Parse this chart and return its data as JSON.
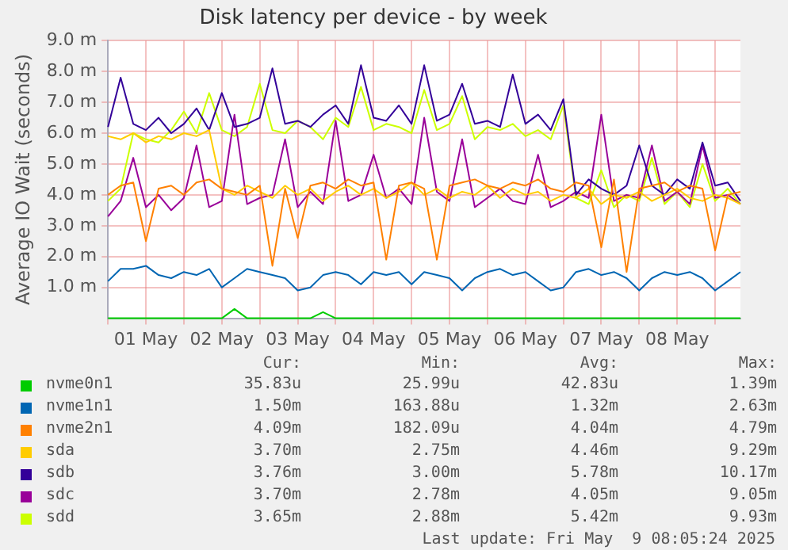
{
  "chart_data": {
    "type": "line",
    "title": "Disk latency per device - by week",
    "ylabel": "Average IO Wait (seconds)",
    "x": [
      "2025-05-01T00:00",
      "2025-05-01T04:00",
      "2025-05-01T08:00",
      "2025-05-01T12:00",
      "2025-05-01T16:00",
      "2025-05-01T20:00",
      "2025-05-02T00:00",
      "2025-05-02T04:00",
      "2025-05-02T08:00",
      "2025-05-02T12:00",
      "2025-05-02T16:00",
      "2025-05-02T20:00",
      "2025-05-03T00:00",
      "2025-05-03T04:00",
      "2025-05-03T08:00",
      "2025-05-03T12:00",
      "2025-05-03T16:00",
      "2025-05-03T20:00",
      "2025-05-04T00:00",
      "2025-05-04T04:00",
      "2025-05-04T08:00",
      "2025-05-04T12:00",
      "2025-05-04T16:00",
      "2025-05-04T20:00",
      "2025-05-05T00:00",
      "2025-05-05T04:00",
      "2025-05-05T08:00",
      "2025-05-05T12:00",
      "2025-05-05T16:00",
      "2025-05-05T20:00",
      "2025-05-06T00:00",
      "2025-05-06T04:00",
      "2025-05-06T08:00",
      "2025-05-06T12:00",
      "2025-05-06T16:00",
      "2025-05-06T20:00",
      "2025-05-07T00:00",
      "2025-05-07T04:00",
      "2025-05-07T08:00",
      "2025-05-07T12:00",
      "2025-05-07T16:00",
      "2025-05-07T20:00",
      "2025-05-08T00:00",
      "2025-05-08T04:00",
      "2025-05-08T08:00",
      "2025-05-08T12:00",
      "2025-05-08T16:00",
      "2025-05-08T20:00",
      "2025-05-09T00:00",
      "2025-05-09T04:00",
      "2025-05-09T08:00"
    ],
    "series": [
      {
        "name": "nvme0n1",
        "color": "#00cc00",
        "values": [
          0,
          0,
          0,
          0,
          0,
          0,
          0,
          0,
          0,
          0,
          0.3,
          0,
          0,
          0,
          0,
          0,
          0,
          0.2,
          0,
          0,
          0,
          0,
          0,
          0,
          0,
          0,
          0,
          0,
          0,
          0,
          0,
          0,
          0,
          0,
          0,
          0,
          0,
          0,
          0,
          0,
          0,
          0,
          0,
          0,
          0,
          0,
          0,
          0,
          0,
          0,
          0
        ]
      },
      {
        "name": "nvme1n1",
        "color": "#0066b3",
        "values": [
          1.2,
          1.6,
          1.6,
          1.7,
          1.4,
          1.3,
          1.5,
          1.4,
          1.6,
          1.0,
          1.3,
          1.6,
          1.5,
          1.4,
          1.3,
          0.9,
          1.0,
          1.4,
          1.5,
          1.4,
          1.1,
          1.5,
          1.4,
          1.5,
          1.1,
          1.5,
          1.4,
          1.3,
          0.9,
          1.3,
          1.5,
          1.6,
          1.4,
          1.5,
          1.2,
          0.9,
          1.0,
          1.5,
          1.6,
          1.4,
          1.5,
          1.3,
          0.9,
          1.3,
          1.5,
          1.4,
          1.5,
          1.3,
          0.9,
          1.2,
          1.5
        ]
      },
      {
        "name": "nvme2n1",
        "color": "#ff8000",
        "values": [
          4.0,
          4.3,
          4.4,
          2.5,
          4.2,
          4.3,
          4.0,
          4.4,
          4.5,
          4.2,
          4.1,
          4.0,
          4.3,
          1.7,
          4.2,
          2.6,
          4.3,
          4.4,
          4.2,
          4.5,
          4.3,
          4.4,
          1.9,
          4.3,
          4.4,
          4.2,
          1.9,
          4.3,
          4.4,
          4.5,
          4.3,
          4.2,
          4.4,
          4.3,
          4.5,
          4.2,
          4.1,
          4.4,
          4.3,
          2.3,
          4.5,
          1.5,
          4.2,
          4.3,
          4.4,
          4.1,
          4.3,
          4.2,
          2.2,
          4.0,
          4.1
        ]
      },
      {
        "name": "sda",
        "color": "#ffcc00",
        "values": [
          5.9,
          5.8,
          6.0,
          5.7,
          5.9,
          5.8,
          6.0,
          5.9,
          6.1,
          4.2,
          4.0,
          4.3,
          4.1,
          3.9,
          4.3,
          4.0,
          4.2,
          3.8,
          4.1,
          4.3,
          4.0,
          4.2,
          3.9,
          4.1,
          4.4,
          4.0,
          4.2,
          3.9,
          4.1,
          4.0,
          4.3,
          3.9,
          4.2,
          4.0,
          4.1,
          3.8,
          4.0,
          3.9,
          4.2,
          3.7,
          4.0,
          3.9,
          4.1,
          3.8,
          4.0,
          4.2,
          3.9,
          3.8,
          4.0,
          3.9,
          3.7
        ]
      },
      {
        "name": "sdb",
        "color": "#330099",
        "values": [
          6.2,
          7.8,
          6.3,
          6.1,
          6.5,
          6.0,
          6.3,
          6.8,
          6.1,
          7.3,
          6.2,
          6.3,
          6.5,
          8.1,
          6.3,
          6.4,
          6.2,
          6.6,
          6.9,
          6.3,
          8.2,
          6.5,
          6.4,
          6.9,
          6.3,
          8.2,
          6.4,
          6.6,
          7.6,
          6.3,
          6.4,
          6.2,
          7.9,
          6.3,
          6.6,
          6.1,
          7.1,
          4.0,
          4.5,
          4.2,
          4.0,
          4.3,
          5.6,
          4.3,
          4.0,
          4.5,
          4.2,
          5.7,
          4.3,
          4.4,
          3.8
        ]
      },
      {
        "name": "sdc",
        "color": "#990099",
        "values": [
          3.3,
          3.8,
          5.2,
          3.6,
          4.0,
          3.5,
          3.9,
          5.6,
          3.6,
          3.8,
          6.6,
          3.7,
          3.9,
          4.0,
          5.8,
          3.6,
          4.1,
          3.7,
          6.4,
          3.8,
          4.0,
          5.3,
          3.9,
          4.2,
          3.7,
          6.5,
          4.1,
          3.8,
          5.8,
          3.6,
          3.9,
          4.2,
          3.8,
          3.7,
          5.3,
          3.6,
          3.8,
          4.1,
          3.9,
          6.6,
          3.8,
          4.0,
          3.9,
          5.6,
          3.8,
          4.1,
          3.7,
          5.6,
          3.9,
          4.0,
          3.7
        ]
      },
      {
        "name": "sdd",
        "color": "#ccff00",
        "values": [
          3.8,
          4.2,
          6.0,
          5.8,
          5.7,
          6.1,
          6.7,
          6.0,
          7.3,
          6.1,
          5.9,
          6.2,
          7.6,
          6.1,
          6.0,
          6.4,
          6.2,
          5.8,
          6.5,
          6.2,
          7.5,
          6.1,
          6.3,
          6.2,
          6.0,
          7.4,
          6.1,
          6.3,
          7.2,
          5.8,
          6.2,
          6.1,
          6.3,
          5.9,
          6.1,
          5.8,
          6.9,
          3.9,
          3.7,
          4.8,
          3.6,
          4.0,
          3.8,
          5.2,
          3.7,
          4.1,
          3.6,
          5.0,
          3.8,
          4.2,
          3.7
        ]
      }
    ],
    "xlim": [
      "2025-05-01T00:00",
      "2025-05-09T08:00"
    ],
    "xticks": [
      {
        "value": "2025-05-01T00:00",
        "label": null
      },
      {
        "value": "2025-05-01T12:00",
        "label": "01 May"
      },
      {
        "value": "2025-05-02T00:00",
        "label": null
      },
      {
        "value": "2025-05-02T12:00",
        "label": "02 May"
      },
      {
        "value": "2025-05-03T00:00",
        "label": null
      },
      {
        "value": "2025-05-03T12:00",
        "label": "03 May"
      },
      {
        "value": "2025-05-04T00:00",
        "label": null
      },
      {
        "value": "2025-05-04T12:00",
        "label": "04 May"
      },
      {
        "value": "2025-05-05T00:00",
        "label": null
      },
      {
        "value": "2025-05-05T12:00",
        "label": "05 May"
      },
      {
        "value": "2025-05-06T00:00",
        "label": null
      },
      {
        "value": "2025-05-06T12:00",
        "label": "06 May"
      },
      {
        "value": "2025-05-07T00:00",
        "label": null
      },
      {
        "value": "2025-05-07T12:00",
        "label": "07 May"
      },
      {
        "value": "2025-05-08T00:00",
        "label": null
      },
      {
        "value": "2025-05-08T12:00",
        "label": "08 May"
      },
      {
        "value": "2025-05-09T00:00",
        "label": null
      }
    ],
    "ylim": [
      0,
      9
    ],
    "yticks": [
      {
        "value": 1,
        "label": "1.0 m"
      },
      {
        "value": 2,
        "label": "2.0 m"
      },
      {
        "value": 3,
        "label": "3.0 m"
      },
      {
        "value": 4,
        "label": "4.0 m"
      },
      {
        "value": 5,
        "label": "5.0 m"
      },
      {
        "value": 6,
        "label": "6.0 m"
      },
      {
        "value": 7,
        "label": "7.0 m"
      },
      {
        "value": 8,
        "label": "8.0 m"
      },
      {
        "value": 9,
        "label": "9.0 m"
      }
    ],
    "grid": true,
    "legend": "bottom",
    "marker": "none",
    "annotations": [
      "Cur:",
      "Min:",
      "Avg:",
      "Max:",
      "35.83u",
      "25.99u",
      "42.83u",
      "1.39m",
      "1.50m",
      "163.88u",
      "1.32m",
      "2.63m",
      "4.09m",
      "182.09u",
      "4.04m",
      "4.79m",
      "3.70m",
      "2.75m",
      "4.46m",
      "9.29m",
      "3.76m",
      "3.00m",
      "5.78m",
      "10.17m",
      "3.70m",
      "2.78m",
      "4.05m",
      "9.05m",
      "3.65m",
      "2.88m",
      "5.42m",
      "9.93m",
      "Last update: Fri May  9 08:05:24 2025"
    ]
  }
}
